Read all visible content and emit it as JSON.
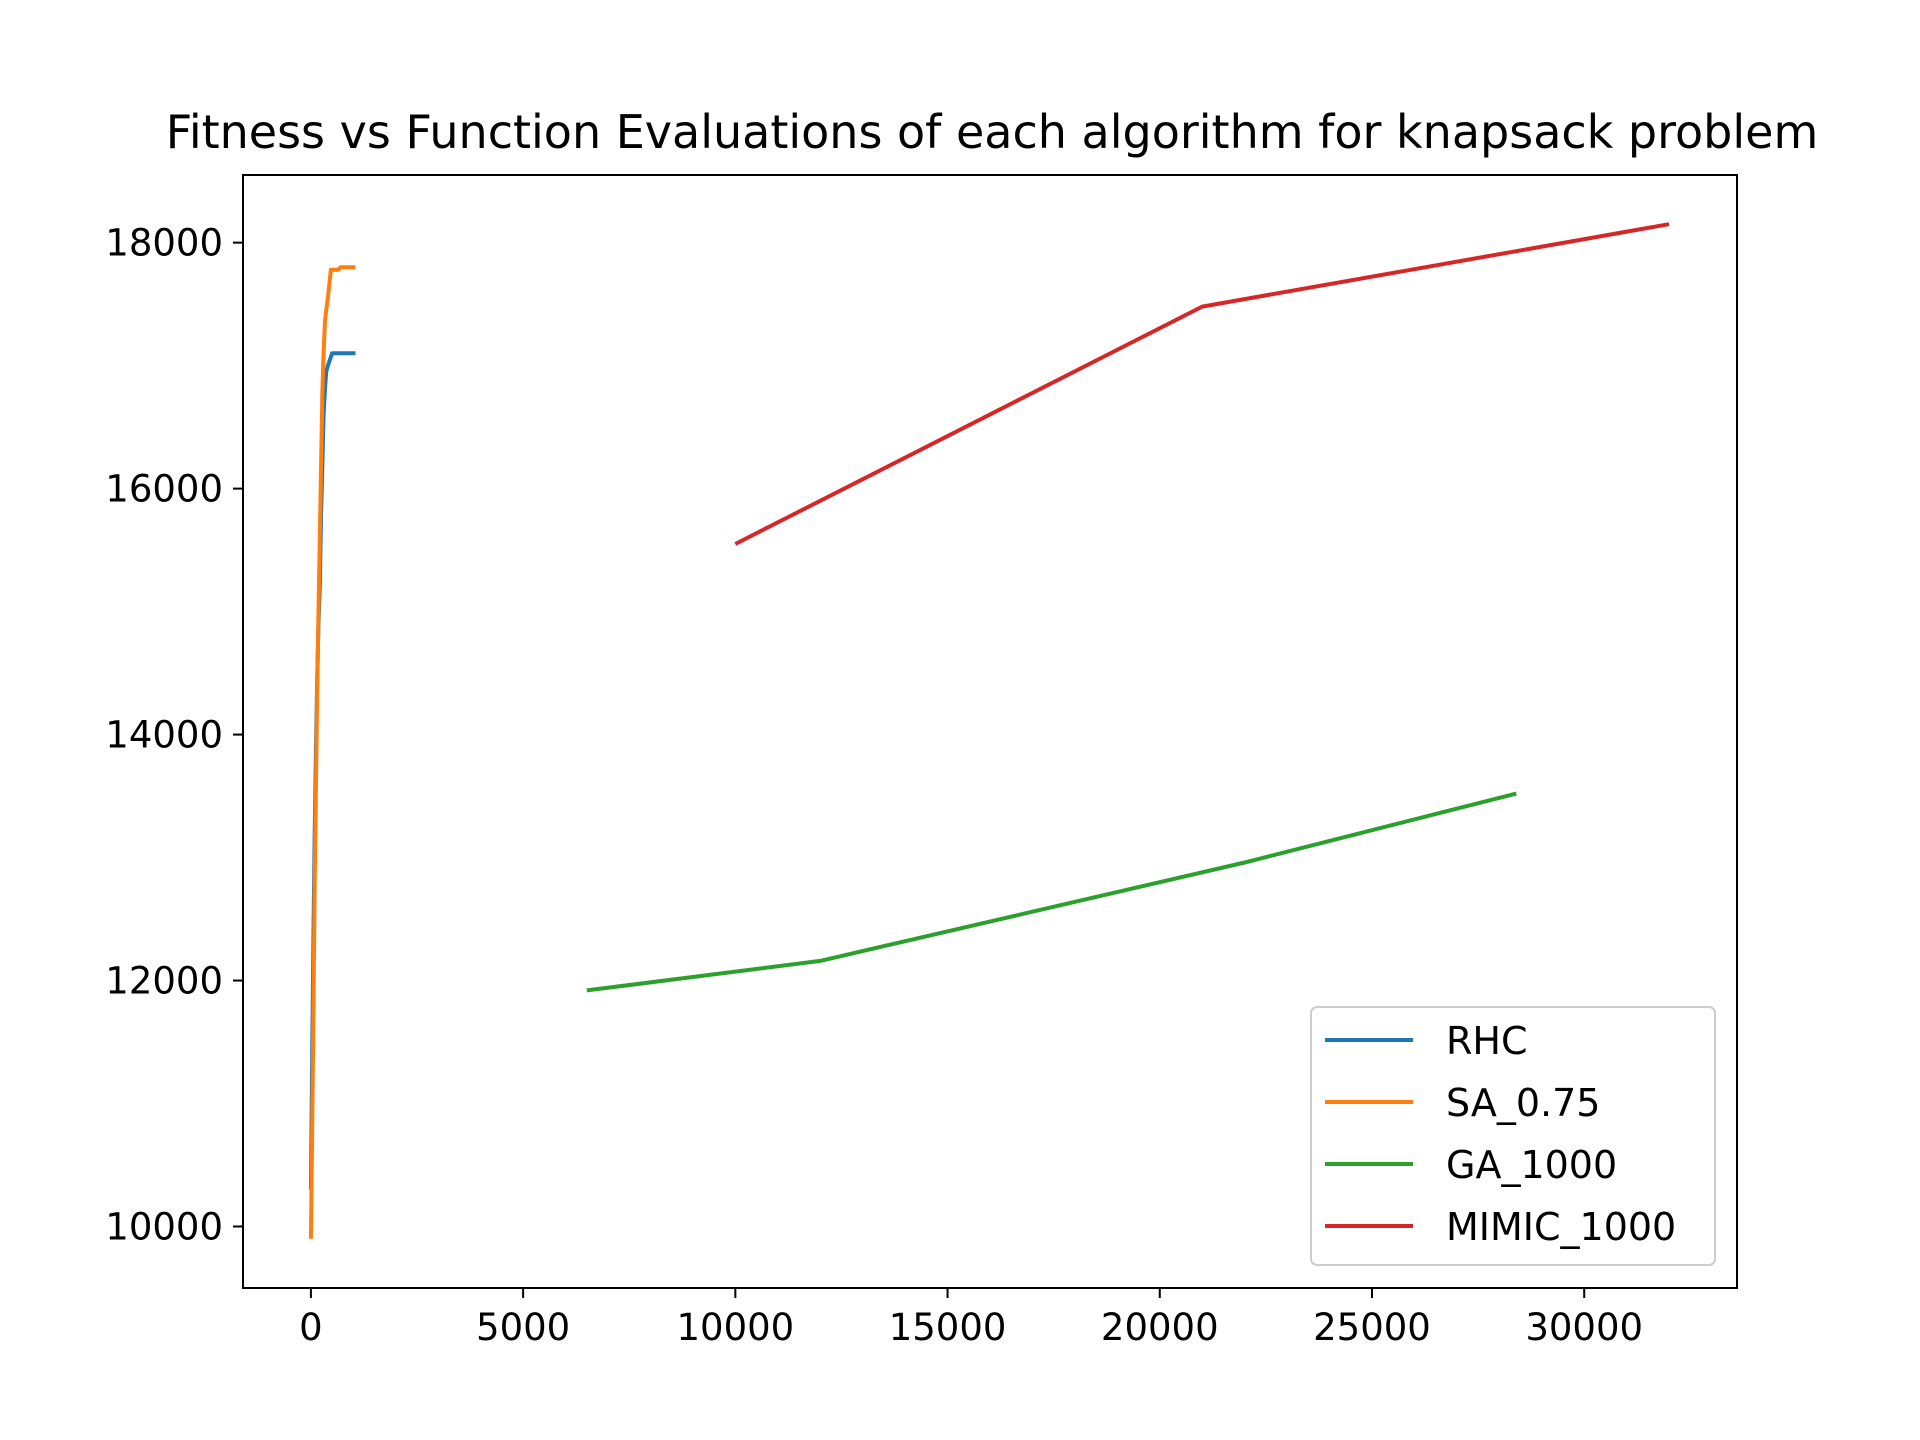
{
  "chart_data": {
    "type": "line",
    "title": "Fitness vs Function Evaluations of each algorithm for knapsack problem",
    "xlabel": "",
    "ylabel": "",
    "xlim": [
      -1600,
      33600
    ],
    "ylim": [
      9500,
      18550
    ],
    "x_ticks": [
      0,
      5000,
      10000,
      15000,
      20000,
      25000,
      30000
    ],
    "x_tick_labels": [
      "0",
      "5000",
      "10000",
      "15000",
      "20000",
      "25000",
      "30000"
    ],
    "y_ticks": [
      10000,
      12000,
      14000,
      16000,
      18000
    ],
    "y_tick_labels": [
      "10000",
      "12000",
      "14000",
      "16000",
      "18000"
    ],
    "grid": false,
    "legend_position": "lower-right",
    "series": [
      {
        "name": "RHC",
        "color": "#1f77b4",
        "x": [
          0,
          30,
          60,
          90,
          120,
          150,
          180,
          210,
          240,
          270,
          300,
          330,
          360,
          400,
          450,
          500,
          550,
          600,
          700,
          800,
          900,
          1050
        ],
        "y": [
          10300,
          11400,
          12400,
          13200,
          13900,
          14500,
          14900,
          15200,
          15800,
          16200,
          16600,
          16800,
          16950,
          17000,
          17050,
          17100,
          17100,
          17100,
          17100,
          17100,
          17100,
          17100
        ]
      },
      {
        "name": "SA_0.75",
        "color": "#ff7f0e",
        "x": [
          0,
          30,
          60,
          90,
          120,
          150,
          180,
          210,
          240,
          270,
          300,
          330,
          360,
          400,
          430,
          470,
          520,
          580,
          650,
          700,
          800,
          900,
          1050
        ],
        "y": [
          9900,
          10800,
          11800,
          12800,
          13600,
          14400,
          15000,
          15600,
          16200,
          16800,
          17100,
          17350,
          17450,
          17550,
          17650,
          17780,
          17780,
          17780,
          17780,
          17800,
          17800,
          17800,
          17800
        ]
      },
      {
        "name": "GA_1000",
        "color": "#2ca02c",
        "x": [
          6500,
          12000,
          17000,
          22000,
          28400
        ],
        "y": [
          11920,
          12160,
          12560,
          12960,
          13520
        ]
      },
      {
        "name": "MIMIC_1000",
        "color": "#d62728",
        "x": [
          10000,
          21000,
          32000
        ],
        "y": [
          15550,
          17480,
          18150
        ]
      }
    ]
  }
}
